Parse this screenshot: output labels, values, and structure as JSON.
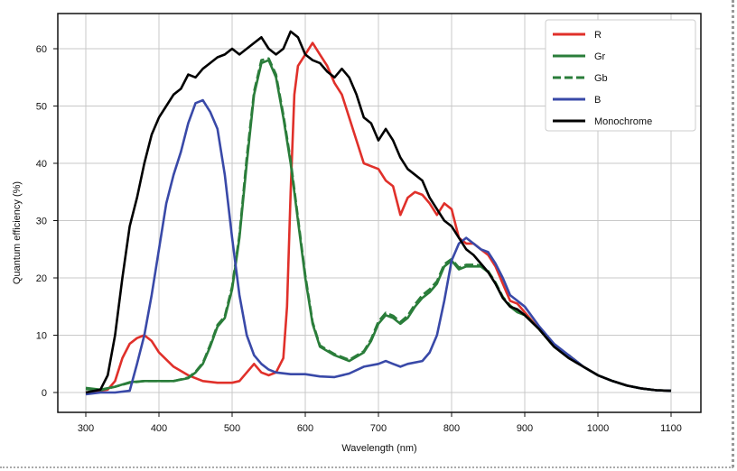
{
  "chart_data": {
    "type": "line",
    "title": "",
    "xlabel": "Wavelength (nm)",
    "ylabel": "Quantum efficiency (%)",
    "xlim": [
      260,
      1140
    ],
    "ylim": [
      -3.5,
      66
    ],
    "xticks": [
      300,
      400,
      500,
      600,
      700,
      800,
      900,
      1000,
      1100
    ],
    "yticks": [
      0,
      10,
      20,
      30,
      40,
      50,
      60
    ],
    "grid": true,
    "legend_position": "top-right",
    "series": [
      {
        "name": "R",
        "color": "#e0302a",
        "dash": false,
        "x": [
          300,
          330,
          340,
          350,
          360,
          370,
          380,
          390,
          400,
          420,
          440,
          460,
          480,
          500,
          510,
          520,
          530,
          540,
          550,
          560,
          570,
          575,
          580,
          585,
          590,
          600,
          610,
          620,
          630,
          640,
          650,
          660,
          670,
          680,
          690,
          700,
          710,
          720,
          730,
          740,
          750,
          760,
          770,
          780,
          790,
          800,
          810,
          820,
          830,
          840,
          850,
          860,
          870,
          880,
          890,
          900,
          920,
          940,
          960,
          980,
          1000,
          1020,
          1040,
          1060,
          1080,
          1100
        ],
        "y": [
          0,
          0.5,
          2,
          6,
          8.5,
          9.5,
          10,
          9,
          7,
          4.5,
          3,
          2,
          1.7,
          1.7,
          2,
          3.5,
          5,
          3.5,
          3,
          3.5,
          6,
          15,
          35,
          52,
          57,
          59,
          61,
          59,
          57,
          54,
          52,
          48,
          44,
          40,
          39.5,
          39,
          37,
          36,
          31,
          34,
          35,
          34.5,
          33,
          31,
          33,
          32,
          27,
          26,
          26,
          25,
          24,
          22,
          19,
          16,
          15.5,
          14,
          11,
          8,
          6.5,
          4.5,
          3,
          2,
          1.2,
          0.7,
          0.4,
          0.3
        ]
      },
      {
        "name": "Gr",
        "color": "#2a7d3a",
        "dash": false,
        "x": [
          300,
          320,
          340,
          360,
          380,
          400,
          420,
          440,
          450,
          460,
          470,
          480,
          490,
          500,
          510,
          520,
          530,
          540,
          550,
          560,
          570,
          580,
          590,
          600,
          610,
          620,
          640,
          660,
          680,
          690,
          700,
          710,
          720,
          730,
          740,
          750,
          760,
          770,
          780,
          790,
          800,
          810,
          820,
          830,
          840,
          850,
          860,
          870,
          880,
          890,
          900,
          920,
          940,
          960,
          980,
          1000,
          1020,
          1040,
          1060,
          1080,
          1100
        ],
        "y": [
          0.8,
          0.5,
          1,
          1.8,
          2,
          2,
          2,
          2.5,
          3.5,
          5,
          8,
          11.5,
          13,
          18,
          27,
          40,
          52,
          57.5,
          58,
          55,
          48,
          40,
          30,
          20,
          12,
          8,
          6.5,
          5.5,
          7,
          9,
          12,
          13.5,
          13,
          12,
          13,
          15,
          16.5,
          17.5,
          19,
          22,
          23,
          21.5,
          22,
          22,
          22,
          21,
          19,
          16.5,
          15,
          14,
          13.5,
          11,
          8,
          6.5,
          4.5,
          3,
          2,
          1.2,
          0.7,
          0.4,
          0.3
        ]
      },
      {
        "name": "Gb",
        "color": "#2a7d3a",
        "dash": true,
        "x": [
          300,
          320,
          340,
          360,
          380,
          400,
          420,
          440,
          450,
          460,
          470,
          480,
          490,
          500,
          510,
          520,
          530,
          540,
          550,
          560,
          570,
          580,
          590,
          600,
          610,
          620,
          640,
          660,
          680,
          690,
          700,
          710,
          720,
          730,
          740,
          750,
          760,
          770,
          780,
          790,
          800,
          810,
          820,
          830,
          840,
          850,
          860,
          870,
          880,
          890,
          900,
          920,
          940,
          960,
          980,
          1000,
          1020,
          1040,
          1060,
          1080,
          1100
        ],
        "y": [
          0.6,
          0.4,
          1,
          1.7,
          2,
          2,
          2,
          2.6,
          3.6,
          5.2,
          8.3,
          11.8,
          13.3,
          18.5,
          27.5,
          41,
          52.5,
          58,
          58.3,
          55.5,
          48.5,
          40.5,
          30.5,
          20.5,
          12.3,
          8.2,
          6.7,
          5.7,
          7.2,
          9.3,
          12.4,
          13.9,
          13.4,
          12.3,
          13.4,
          15.4,
          17,
          18,
          19.4,
          22.4,
          23.3,
          21.8,
          22.3,
          22.3,
          22.2,
          21.2,
          19.2,
          16.7,
          15.2,
          14.1,
          13.6,
          11,
          8,
          6.5,
          4.5,
          3,
          2,
          1.2,
          0.7,
          0.4,
          0.3
        ]
      },
      {
        "name": "B",
        "color": "#3949a8",
        "dash": false,
        "x": [
          300,
          320,
          340,
          360,
          370,
          380,
          390,
          400,
          410,
          420,
          430,
          440,
          450,
          460,
          470,
          480,
          490,
          500,
          510,
          520,
          530,
          540,
          550,
          560,
          580,
          600,
          620,
          640,
          660,
          680,
          700,
          710,
          720,
          730,
          740,
          760,
          770,
          780,
          790,
          800,
          810,
          820,
          830,
          840,
          850,
          860,
          870,
          880,
          890,
          900,
          920,
          940,
          960,
          980,
          1000,
          1020,
          1040,
          1060,
          1080,
          1100
        ],
        "y": [
          -0.3,
          0,
          0,
          0.3,
          5,
          10,
          17,
          25,
          33,
          38,
          42,
          47,
          50.5,
          51,
          49,
          46,
          38,
          27,
          17,
          10,
          6.5,
          5,
          4,
          3.5,
          3.2,
          3.2,
          2.8,
          2.7,
          3.3,
          4.5,
          5,
          5.5,
          5,
          4.5,
          5,
          5.5,
          7,
          10,
          16,
          23,
          26,
          27,
          26,
          25,
          24.5,
          22.5,
          20,
          17,
          16,
          15,
          11.5,
          8.5,
          6.5,
          4.5,
          3,
          2,
          1.2,
          0.7,
          0.4,
          0.3
        ]
      },
      {
        "name": "Monochrome",
        "color": "#000000",
        "dash": false,
        "x": [
          300,
          320,
          330,
          340,
          350,
          360,
          370,
          380,
          390,
          400,
          410,
          420,
          430,
          440,
          450,
          460,
          470,
          480,
          490,
          500,
          510,
          520,
          530,
          540,
          550,
          560,
          570,
          580,
          590,
          600,
          610,
          620,
          630,
          640,
          650,
          660,
          670,
          680,
          690,
          700,
          710,
          720,
          730,
          740,
          750,
          760,
          770,
          780,
          790,
          800,
          810,
          820,
          830,
          840,
          850,
          860,
          870,
          880,
          890,
          900,
          920,
          940,
          960,
          980,
          1000,
          1020,
          1040,
          1060,
          1080,
          1100
        ],
        "y": [
          0,
          0.5,
          3,
          10,
          20,
          29,
          34,
          40,
          45,
          48,
          50,
          52,
          53,
          55.5,
          55,
          56.5,
          57.5,
          58.5,
          59,
          60,
          59,
          60,
          61,
          62,
          60,
          59,
          60,
          63,
          62,
          59,
          58,
          57.5,
          56,
          55,
          56.5,
          55,
          52,
          48,
          47,
          44,
          46,
          44,
          41,
          39,
          38,
          37,
          34,
          32,
          30,
          29,
          27,
          25,
          24,
          22.5,
          21,
          19,
          16.5,
          15,
          14.5,
          13.5,
          11,
          8,
          6,
          4.5,
          3,
          2,
          1.2,
          0.7,
          0.4,
          0.3
        ]
      }
    ]
  }
}
